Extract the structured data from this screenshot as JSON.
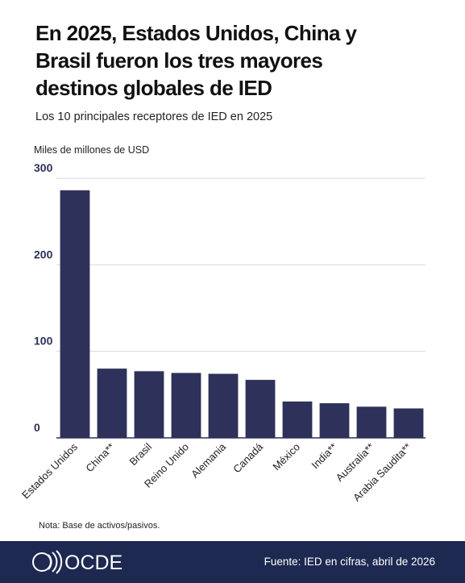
{
  "chart_data": {
    "type": "bar",
    "title": "En 2025, Estados Unidos, China y Brasil fueron los tres mayores destinos globales de IED",
    "subtitle": "Los 10 principales receptores de IED en 2025",
    "y_label": "Miles de millones de USD",
    "categories": [
      "Estados Unidos",
      "China**",
      "Brasil",
      "Reino Unido",
      "Alemania",
      "Canadá",
      "México",
      "India**",
      "Australia**",
      "Arabia Saudita**"
    ],
    "values": [
      286,
      80,
      77,
      75,
      74,
      67,
      42,
      40,
      36,
      34
    ],
    "color": "#2e3159",
    "ylim": [
      0,
      300
    ],
    "yticks": [
      0,
      100,
      200,
      300
    ],
    "grid": true,
    "note": "Nota: Base de activos/pasivos.",
    "source": "Fuente: IED en cifras, abril de 2026"
  },
  "footer": {
    "logo": "OCDE"
  }
}
